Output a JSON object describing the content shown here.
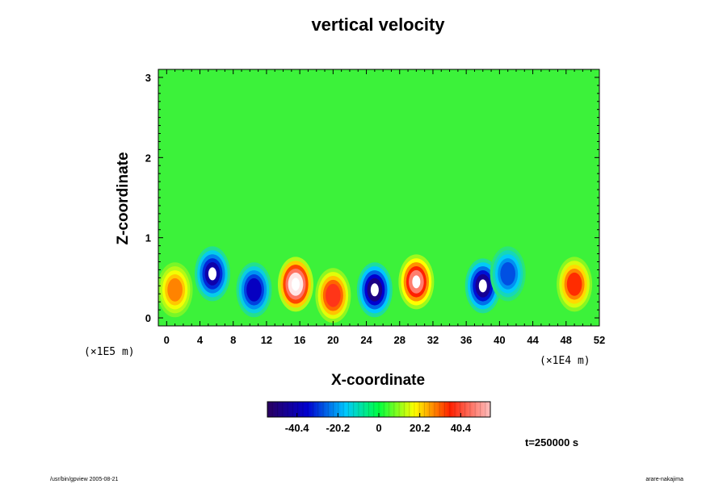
{
  "chart_data": {
    "type": "heatmap",
    "title": "vertical velocity",
    "xlabel": "X-coordinate",
    "ylabel": "Z-coordinate",
    "x_units_label": "(×1E4 m)",
    "z_units_label": "(×1E5 m)",
    "xlim": [
      -1,
      52
    ],
    "ylim": [
      -0.1,
      3.1
    ],
    "x_ticks": [
      "0",
      "4",
      "8",
      "12",
      "16",
      "20",
      "24",
      "28",
      "32",
      "36",
      "40",
      "44",
      "48",
      "52"
    ],
    "y_ticks": [
      "0",
      "1",
      "2",
      "3"
    ],
    "colorbar": {
      "ticks": [
        "-40.4",
        "-20.2",
        "0",
        "20.2",
        "40.4"
      ],
      "range": [
        -55,
        55
      ]
    },
    "time_label": "t=250000 s",
    "background_value": 0,
    "features": [
      {
        "x": 1,
        "z": 0.35,
        "value": 28
      },
      {
        "x": 5.5,
        "z": 0.55,
        "value": -45
      },
      {
        "x": 10.5,
        "z": 0.35,
        "value": -42
      },
      {
        "x": 15.5,
        "z": 0.42,
        "value": 55
      },
      {
        "x": 20,
        "z": 0.28,
        "value": 38
      },
      {
        "x": 25,
        "z": 0.35,
        "value": -50
      },
      {
        "x": 30,
        "z": 0.45,
        "value": 45
      },
      {
        "x": 38,
        "z": 0.4,
        "value": -48
      },
      {
        "x": 41,
        "z": 0.55,
        "value": -32
      },
      {
        "x": 49,
        "z": 0.42,
        "value": 35
      }
    ]
  },
  "footer": {
    "left": "/usr/bin/gpview 2005-08-21",
    "right": "arare-nakajima"
  }
}
